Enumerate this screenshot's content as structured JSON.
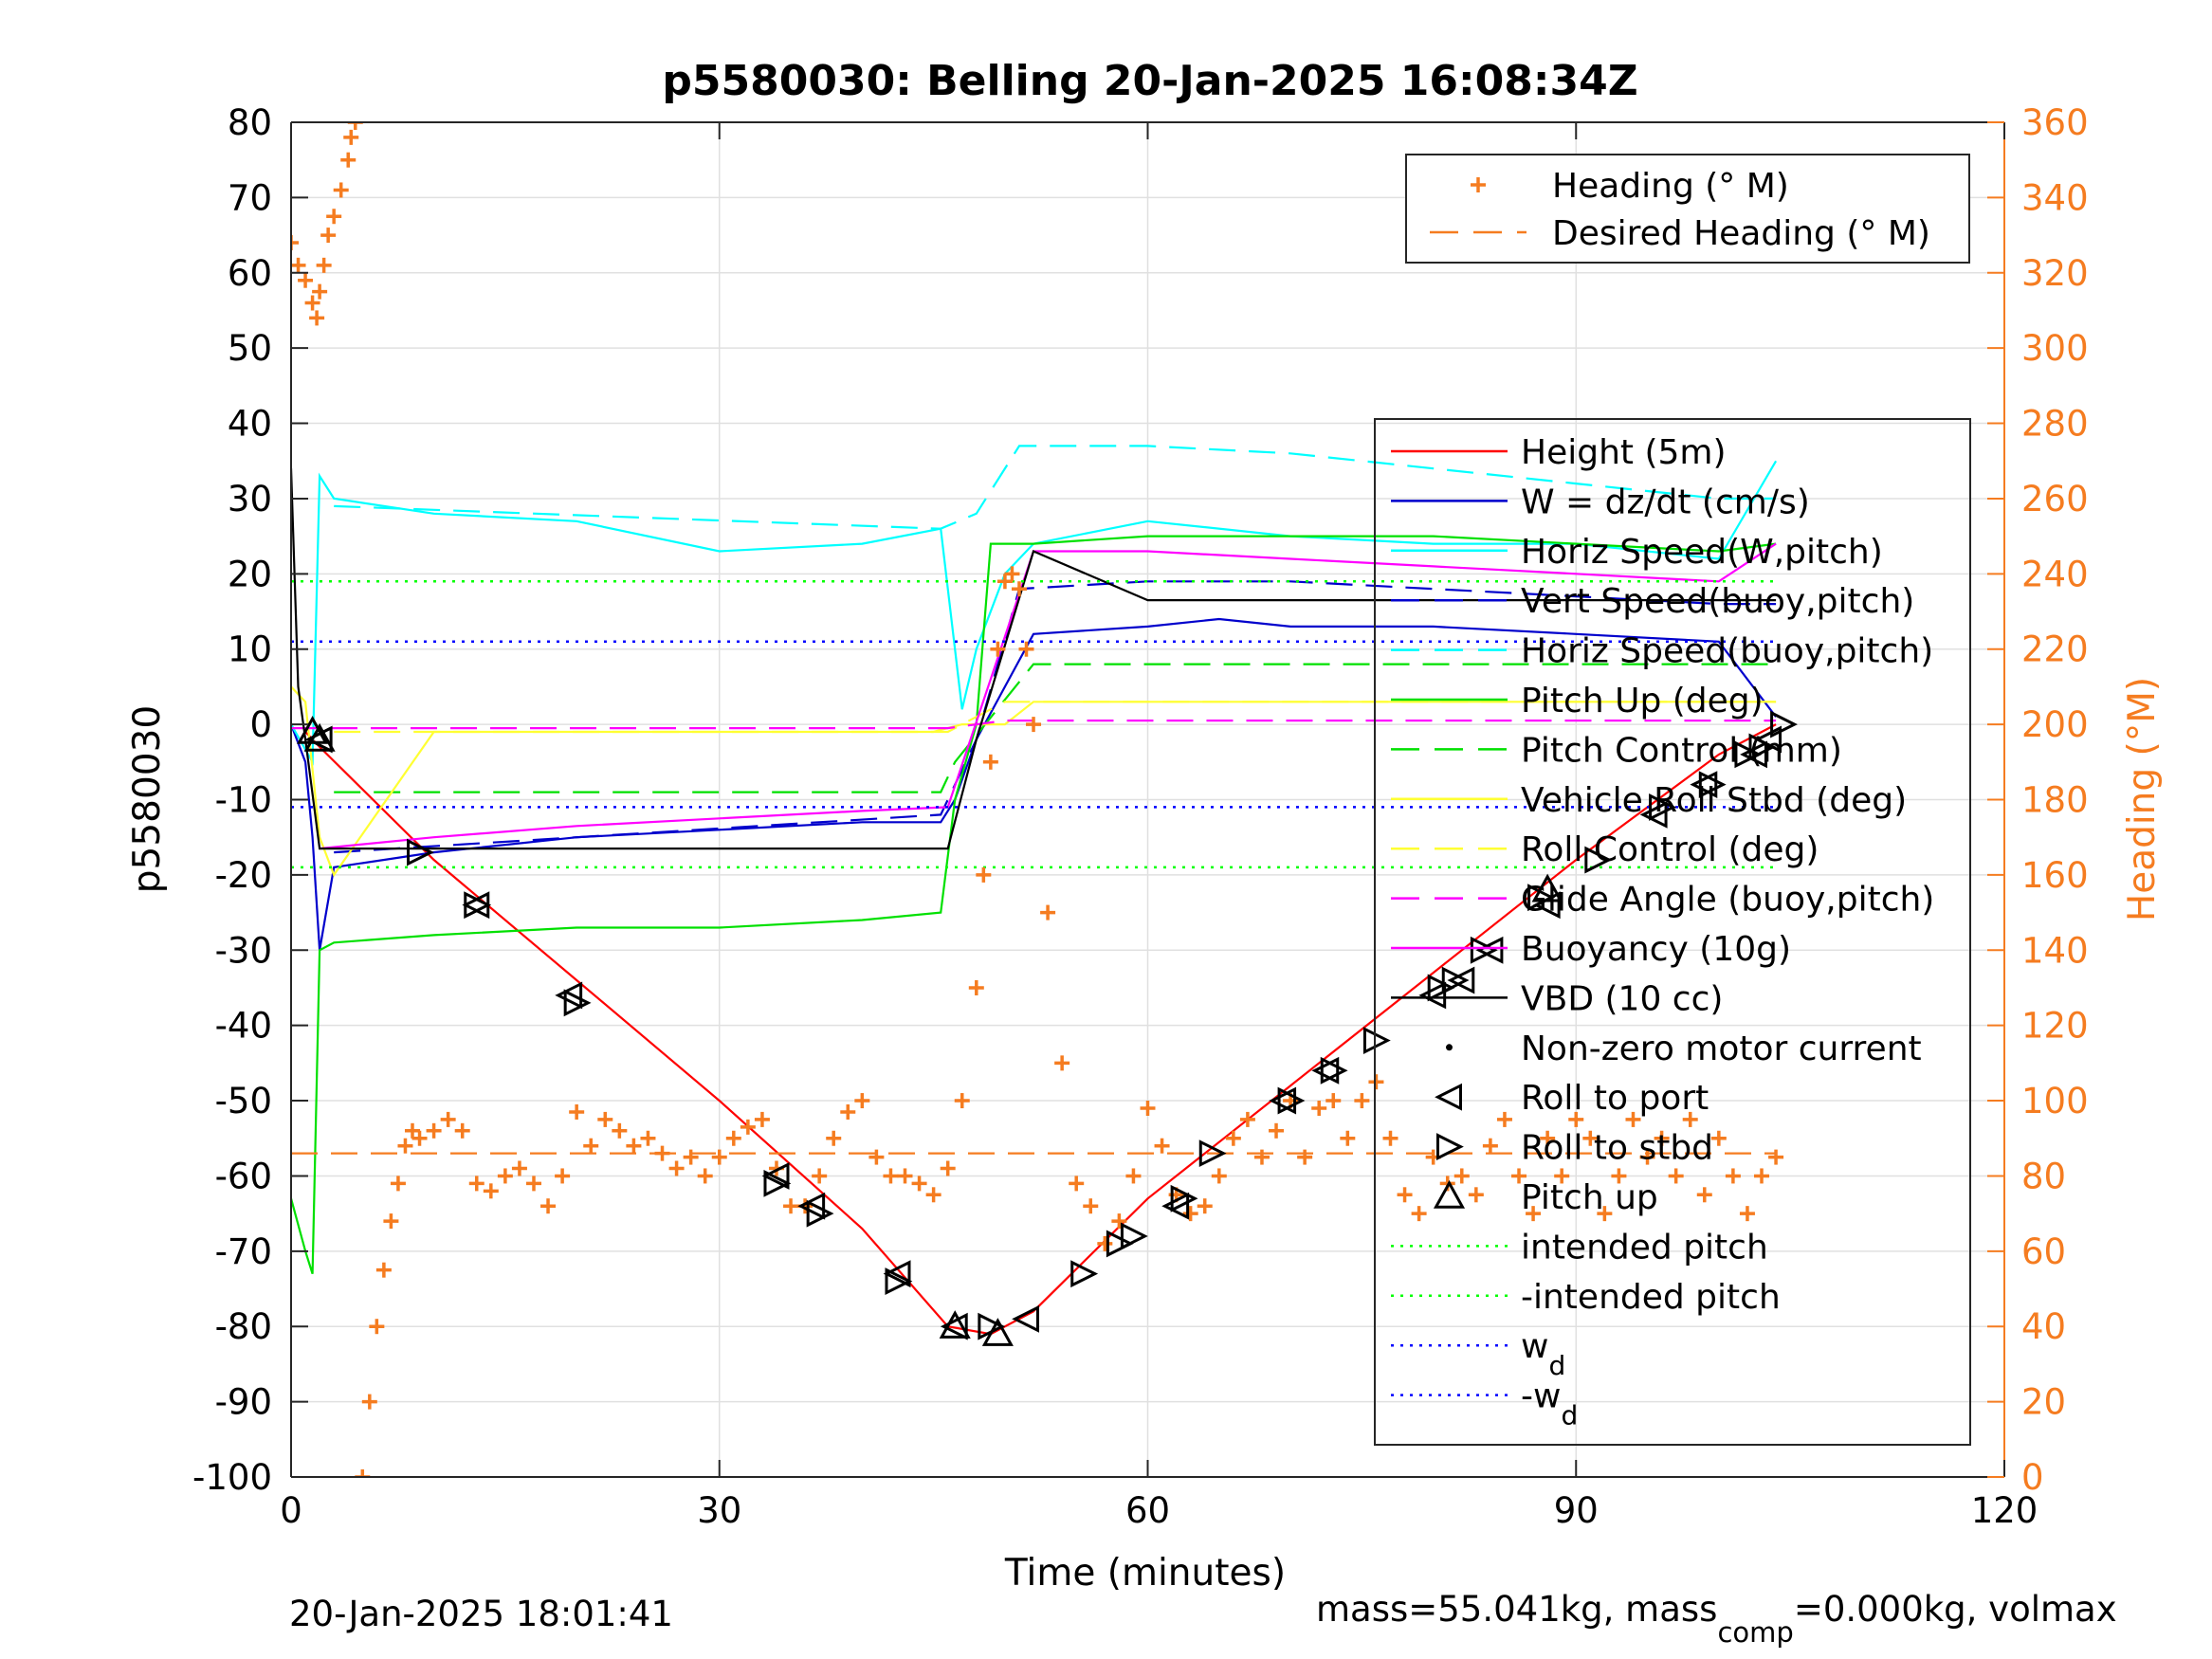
{
  "figure": {
    "title": "p5580030: Belling 20-Jan-2025 16:08:34Z",
    "footer_left": "20-Jan-2025 18:01:41",
    "footer_right_parts": [
      "mass=55.041kg, mass",
      "comp",
      "=0.000kg, volmax"
    ]
  },
  "legend_heading": {
    "items": [
      {
        "label": "Heading (° M)",
        "color": "#F57C20",
        "style": "plus"
      },
      {
        "label": "Desired Heading (° M)",
        "color": "#F57C20",
        "style": "dash"
      }
    ]
  },
  "legend_main": {
    "items": [
      {
        "label": "Height (5m)",
        "color": "#FF0000",
        "style": "solid"
      },
      {
        "label": "W = dz/dt (cm/s)",
        "color": "#0000CC",
        "style": "solid"
      },
      {
        "label": "Horiz Speed(W,pitch)",
        "color": "#00FFFF",
        "style": "solid"
      },
      {
        "label": "Vert Speed(buoy,pitch)",
        "color": "#0000CC",
        "style": "dash"
      },
      {
        "label": "Horiz Speed(buoy,pitch)",
        "color": "#00FFFF",
        "style": "dash"
      },
      {
        "label": "Pitch Up (deg)",
        "color": "#00E000",
        "style": "solid"
      },
      {
        "label": "Pitch Control (mm)",
        "color": "#00E000",
        "style": "dash"
      },
      {
        "label": "Vehicle Roll Stbd (deg)",
        "color": "#FFFF33",
        "style": "solid"
      },
      {
        "label": "Roll Control (deg)",
        "color": "#FFFF33",
        "style": "dash"
      },
      {
        "label": "Glide Angle (buoy,pitch)",
        "color": "#FF00FF",
        "style": "dash"
      },
      {
        "label": "Buoyancy (10g)",
        "color": "#FF00FF",
        "style": "solid"
      },
      {
        "label": "VBD (10 cc)",
        "color": "#000000",
        "style": "solid"
      },
      {
        "label": "Non-zero motor current",
        "color": "#000000",
        "style": "dot"
      },
      {
        "label": "Roll to port",
        "color": "#000000",
        "style": "tri-left"
      },
      {
        "label": "Roll to stbd",
        "color": "#000000",
        "style": "tri-right"
      },
      {
        "label": "Pitch up",
        "color": "#000000",
        "style": "tri-up"
      },
      {
        "label": "intended pitch",
        "color": "#00FF00",
        "style": "dotted"
      },
      {
        "label": "-intended pitch",
        "color": "#00FF00",
        "style": "dotted"
      },
      {
        "label": "w",
        "sub": "d",
        "color": "#0000FF",
        "style": "dotted"
      },
      {
        "label": "-w",
        "sub": "d",
        "color": "#0000FF",
        "style": "dotted"
      }
    ]
  },
  "chart_data": {
    "type": "line",
    "xlabel": "Time (minutes)",
    "ylabel": "p5580030",
    "y2label": "Heading (°M)",
    "xlim": [
      0,
      120
    ],
    "ylim": [
      -100,
      80
    ],
    "y2lim": [
      0,
      360
    ],
    "xticks": [
      0,
      30,
      60,
      90,
      120
    ],
    "yticks": [
      -100,
      -90,
      -80,
      -70,
      -60,
      -50,
      -40,
      -30,
      -20,
      -10,
      0,
      10,
      20,
      30,
      40,
      50,
      60,
      70,
      80
    ],
    "y2ticks": [
      0,
      20,
      40,
      60,
      80,
      100,
      120,
      140,
      160,
      180,
      200,
      220,
      240,
      260,
      280,
      300,
      320,
      340,
      360
    ],
    "grid": true,
    "colors": {
      "axis_right": "#F57C20",
      "grid": "#E0E0E0"
    },
    "series": [
      {
        "name": "Height (5m)",
        "axis": "left",
        "color": "#FF0000",
        "x": [
          1,
          2,
          10,
          20,
          30,
          40,
          46,
          49,
          52,
          60,
          70,
          80,
          90,
          100,
          104
        ],
        "y": [
          -1,
          -3,
          -18,
          -34,
          -50,
          -67,
          -80,
          -81,
          -78,
          -63,
          -48,
          -33,
          -18,
          -4,
          0
        ]
      },
      {
        "name": "W = dz/dt (cm/s)",
        "axis": "left",
        "color": "#0000CC",
        "x": [
          0,
          1,
          1.5,
          2,
          3,
          10,
          20,
          30,
          40,
          45.5,
          46.5,
          48,
          50,
          52,
          60,
          65,
          70,
          80,
          90,
          100,
          104
        ],
        "y": [
          0,
          -5,
          -15,
          -30,
          -19,
          -17,
          -15,
          -14,
          -13,
          -13,
          -10,
          -2,
          5,
          12,
          13,
          14,
          13,
          13,
          12,
          11,
          1
        ]
      },
      {
        "name": "Horiz Speed(W,pitch)",
        "axis": "left",
        "color": "#00FFFF",
        "x": [
          0,
          1.5,
          2,
          3,
          10,
          20,
          30,
          40,
          45.5,
          47,
          48,
          50,
          52,
          60,
          70,
          80,
          90,
          100,
          104
        ],
        "y": [
          0,
          -5,
          33,
          30,
          28,
          27,
          23,
          24,
          26,
          2,
          10,
          20,
          24,
          27,
          25,
          24,
          24,
          22,
          35
        ]
      },
      {
        "name": "Vert Speed(buoy,pitch)",
        "axis": "left",
        "color": "#0000CC",
        "dash": true,
        "x": [
          3,
          45.5,
          48,
          51,
          60,
          70,
          80,
          90,
          100,
          104
        ],
        "y": [
          -17,
          -12,
          -2,
          18,
          19,
          19,
          18,
          17,
          16,
          16
        ]
      },
      {
        "name": "Horiz Speed(buoy,pitch)",
        "axis": "left",
        "color": "#00FFFF",
        "dash": true,
        "x": [
          3,
          45.5,
          48,
          51,
          60,
          70,
          80,
          90,
          100,
          104
        ],
        "y": [
          29,
          26,
          28,
          37,
          37,
          36,
          34,
          32,
          30,
          30
        ]
      },
      {
        "name": "Pitch Up (deg)",
        "axis": "left",
        "color": "#00E000",
        "x": [
          0,
          1,
          1.5,
          2,
          3,
          10,
          20,
          30,
          40,
          45.5,
          46.5,
          48,
          49,
          52,
          60,
          70,
          80,
          90,
          100,
          104
        ],
        "y": [
          -63,
          -70,
          -73,
          -30,
          -29,
          -28,
          -27,
          -27,
          -26,
          -25,
          -10,
          0,
          24,
          24,
          25,
          25,
          25,
          24,
          23,
          24
        ]
      },
      {
        "name": "Pitch Control (mm)",
        "axis": "left",
        "color": "#00E000",
        "dash": true,
        "x": [
          3,
          45.5,
          46.5,
          52,
          100,
          104
        ],
        "y": [
          -9,
          -9,
          -5,
          8,
          8,
          8
        ]
      },
      {
        "name": "Vehicle Roll Stbd (deg)",
        "axis": "left",
        "color": "#FFFF33",
        "x": [
          0,
          1,
          2,
          3,
          10,
          20,
          30,
          40,
          45,
          47,
          50,
          52,
          60,
          70,
          80,
          90,
          100,
          104
        ],
        "y": [
          5,
          3,
          -15,
          -20,
          -1,
          -1,
          -1,
          -1,
          -1,
          0,
          0,
          3,
          3,
          3,
          3,
          3,
          3,
          3
        ]
      },
      {
        "name": "Roll Control (deg)",
        "axis": "left",
        "color": "#FFFF33",
        "dash": true,
        "x": [
          3,
          46,
          50,
          104
        ],
        "y": [
          -1,
          -1,
          3,
          3
        ]
      },
      {
        "name": "Glide Angle (buoy,pitch)",
        "axis": "left",
        "color": "#FF00FF",
        "dash": true,
        "x": [
          0,
          46,
          50,
          104
        ],
        "y": [
          -0.5,
          -0.5,
          0.5,
          0.5
        ]
      },
      {
        "name": "Buoyancy (10g)",
        "axis": "left",
        "color": "#FF00FF",
        "x": [
          2,
          10,
          20,
          30,
          40,
          46,
          52,
          60,
          70,
          80,
          90,
          100,
          104
        ],
        "y": [
          -16.5,
          -15,
          -13.5,
          -12.5,
          -11.5,
          -11,
          23,
          23,
          22,
          21,
          20,
          19,
          24
        ]
      },
      {
        "name": "VBD (10 cc)",
        "axis": "left",
        "color": "#000000",
        "x": [
          0,
          0.5,
          1,
          2,
          10,
          20,
          30,
          40,
          46,
          48,
          52,
          60,
          70,
          80,
          90,
          100,
          104
        ],
        "y": [
          34,
          5,
          -2,
          -16.5,
          -16.5,
          -16.5,
          -16.5,
          -16.5,
          -16.5,
          -2,
          23,
          16.5,
          16.5,
          16.5,
          16.5,
          16.5,
          16.5
        ]
      },
      {
        "name": "intended pitch",
        "axis": "left",
        "color": "#00FF00",
        "dotted": true,
        "x": [
          0,
          104
        ],
        "y": [
          19,
          19
        ]
      },
      {
        "name": "-intended pitch",
        "axis": "left",
        "color": "#00FF00",
        "dotted": true,
        "x": [
          0,
          104
        ],
        "y": [
          -19,
          -19
        ]
      },
      {
        "name": "wd",
        "axis": "left",
        "color": "#0000FF",
        "dotted": true,
        "x": [
          0,
          104
        ],
        "y": [
          11,
          11
        ]
      },
      {
        "name": "-wd",
        "axis": "left",
        "color": "#0000FF",
        "dotted": true,
        "x": [
          0,
          104
        ],
        "y": [
          -11,
          -11
        ]
      },
      {
        "name": "Desired Heading (° M)",
        "axis": "right",
        "color": "#F57C20",
        "dash": true,
        "x": [
          0,
          104
        ],
        "y": [
          86,
          86
        ]
      }
    ],
    "heading_points": {
      "name": "Heading (° M)",
      "axis": "right",
      "color": "#F57C20",
      "x": [
        0,
        0.5,
        1,
        1.5,
        1.8,
        2,
        2.3,
        2.6,
        3,
        3.5,
        4,
        4.2,
        4.5,
        5,
        5.5,
        6,
        6.5,
        7,
        7.5,
        8,
        8.5,
        9,
        10,
        11,
        12,
        13,
        14,
        15,
        16,
        17,
        18,
        19,
        20,
        21,
        22,
        23,
        24,
        25,
        26,
        27,
        28,
        29,
        30,
        31,
        32,
        33,
        34,
        35,
        36,
        37,
        38,
        39,
        40,
        41,
        42,
        43,
        44,
        45,
        46,
        47,
        48,
        48.5,
        49,
        49.5,
        50,
        50.5,
        51,
        51.5,
        52,
        53,
        54,
        55,
        56,
        57,
        58,
        59,
        60,
        61,
        62,
        63,
        64,
        65,
        66,
        67,
        68,
        69,
        70,
        71,
        72,
        73,
        74,
        75,
        76,
        77,
        78,
        79,
        80,
        81,
        82,
        83,
        84,
        85,
        86,
        87,
        88,
        89,
        90,
        91,
        92,
        93,
        94,
        95,
        96,
        97,
        98,
        99,
        100,
        101,
        102,
        103,
        104
      ],
      "y": [
        328,
        322,
        318,
        312,
        308,
        315,
        322,
        330,
        335,
        342,
        350,
        356,
        360,
        0,
        20,
        40,
        55,
        68,
        78,
        88,
        92,
        90,
        92,
        95,
        92,
        78,
        76,
        80,
        82,
        78,
        72,
        80,
        97,
        88,
        95,
        92,
        88,
        90,
        86,
        82,
        85,
        80,
        85,
        90,
        93,
        95,
        82,
        72,
        72,
        80,
        90,
        97,
        100,
        85,
        80,
        80,
        78,
        75,
        82,
        100,
        130,
        160,
        190,
        220,
        238,
        240,
        236,
        220,
        200,
        150,
        110,
        78,
        72,
        62,
        68,
        80,
        98,
        88,
        75,
        70,
        72,
        80,
        90,
        95,
        85,
        92,
        100,
        85,
        98,
        100,
        90,
        100,
        105,
        90,
        75,
        70,
        85,
        78,
        80,
        75,
        88,
        95,
        80,
        70,
        90,
        80,
        95,
        90,
        70,
        80,
        95,
        85,
        90,
        80,
        95,
        75,
        90,
        80,
        70,
        80,
        85
      ]
    },
    "roll_port_markers": {
      "name": "Roll to port",
      "x": [
        2,
        13,
        19.5,
        34,
        36.5,
        42.5,
        46.5,
        51.5,
        62,
        69.5,
        72.5,
        80,
        82,
        84,
        88,
        95.5,
        99,
        102.5,
        103.5
      ],
      "y": [
        -2,
        -24,
        -36,
        -60,
        -64,
        -73,
        -80,
        -79,
        -64,
        -50,
        -46,
        -36,
        -34,
        -30,
        -24,
        -12,
        -8,
        -4,
        -2
      ]
    },
    "roll_stbd_markers": {
      "name": "Roll to stbd",
      "x": [
        9,
        13,
        20,
        34,
        37,
        42.5,
        49,
        55.5,
        58,
        59,
        62.5,
        64.5,
        70,
        73,
        76,
        80.5,
        81.5,
        83.5,
        87.5,
        91.5,
        96,
        99.5,
        102,
        103,
        104.5
      ],
      "y": [
        -17,
        -24,
        -37,
        -61,
        -65,
        -74,
        -80,
        -73,
        -69,
        -68,
        -63,
        -57,
        -50,
        -46,
        -42,
        -35,
        -34,
        -30,
        -23,
        -18,
        -11,
        -8,
        -4,
        -3,
        0
      ]
    },
    "pitch_up_markers": {
      "name": "Pitch up",
      "x": [
        1.5,
        2,
        46.5,
        49.5,
        88
      ],
      "y": [
        -1,
        -2,
        -80,
        -81,
        -22
      ]
    }
  }
}
